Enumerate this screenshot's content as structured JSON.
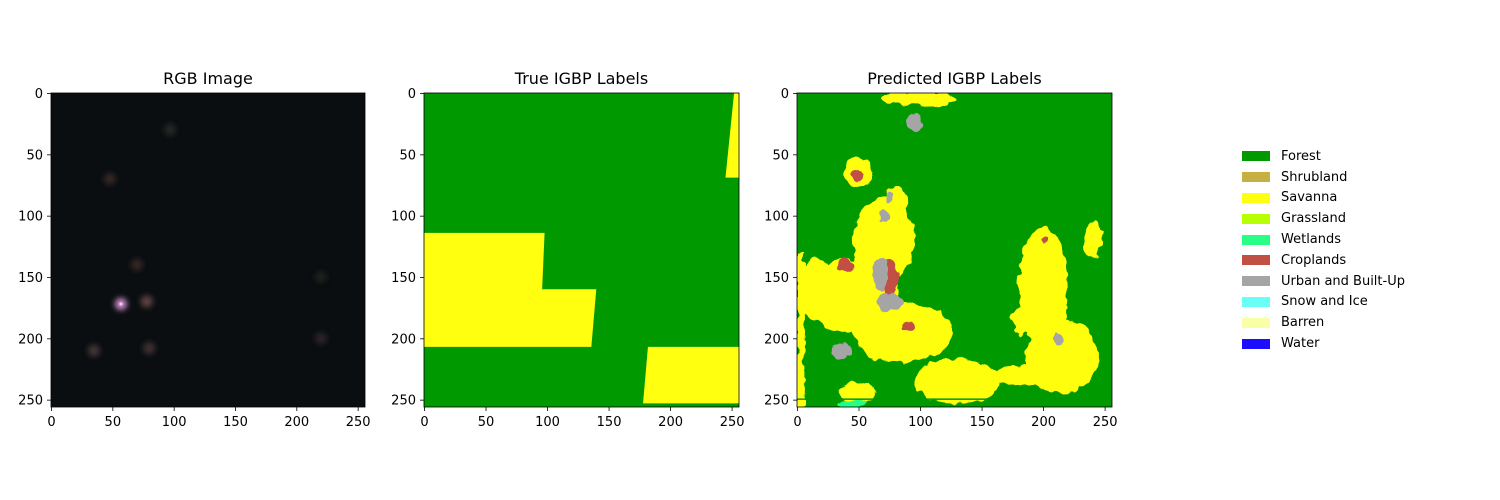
{
  "colors": {
    "forest": "#009900",
    "savanna": "#ffff0f",
    "shrubland": "#c6b044",
    "grassland": "#b6ff05",
    "wetlands": "#27ff87",
    "croplands": "#c24f44",
    "urban": "#a5a5a5",
    "snow": "#69fff8",
    "barren": "#f9ffa4",
    "water": "#1c0dff",
    "rgb_background": "#0a0e11"
  },
  "chart_data": [
    {
      "type": "heatmap",
      "title": "RGB Image",
      "xlim": [
        0,
        256
      ],
      "ylim": [
        256,
        0
      ],
      "xticks": [
        0,
        50,
        100,
        150,
        200,
        250
      ],
      "yticks": [
        0,
        50,
        100,
        150,
        200,
        250
      ],
      "description_values": "dark satellite RGB image with faint brownish bright patches",
      "bright_spots": [
        {
          "x": 57,
          "y": 172,
          "color": "#e8a0e0"
        },
        {
          "x": 78,
          "y": 170,
          "color": "#6a4a48"
        },
        {
          "x": 35,
          "y": 210,
          "color": "#4a3a3a"
        },
        {
          "x": 80,
          "y": 208,
          "color": "#4a3636"
        },
        {
          "x": 70,
          "y": 140,
          "color": "#3a2a28"
        },
        {
          "x": 48,
          "y": 70,
          "color": "#3a2b27"
        },
        {
          "x": 97,
          "y": 30,
          "color": "#2b2a28"
        },
        {
          "x": 220,
          "y": 150,
          "color": "#22201e"
        },
        {
          "x": 220,
          "y": 200,
          "color": "#33282a"
        }
      ]
    },
    {
      "type": "heatmap",
      "title": "True IGBP Labels",
      "xlim": [
        0,
        256
      ],
      "ylim": [
        256,
        0
      ],
      "xticks": [
        0,
        50,
        100,
        150,
        200,
        250
      ],
      "yticks": [
        0,
        50,
        100,
        150,
        200,
        250
      ],
      "regions": [
        {
          "class": "Forest",
          "points": [
            [
              0,
              0
            ],
            [
              256,
              0
            ],
            [
              256,
              256
            ],
            [
              0,
              256
            ]
          ]
        },
        {
          "class": "Savanna",
          "points": [
            [
              0,
              114
            ],
            [
              98,
              114
            ],
            [
              96,
              160
            ],
            [
              140,
              160
            ],
            [
              136,
              207
            ],
            [
              0,
              207
            ]
          ]
        },
        {
          "class": "Savanna",
          "points": [
            [
              182,
              207
            ],
            [
              256,
              207
            ],
            [
              256,
              253
            ],
            [
              178,
              253
            ]
          ]
        },
        {
          "class": "Savanna",
          "points": [
            [
              252,
              0
            ],
            [
              256,
              0
            ],
            [
              256,
              69
            ],
            [
              245,
              69
            ]
          ]
        }
      ]
    },
    {
      "type": "heatmap",
      "title": "Predicted IGBP Labels",
      "xlim": [
        0,
        256
      ],
      "ylim": [
        256,
        0
      ],
      "xticks": [
        0,
        50,
        100,
        150,
        200,
        250
      ],
      "yticks": [
        0,
        50,
        100,
        150,
        200,
        250
      ],
      "blobs": [
        {
          "class": "Savanna",
          "x": 45,
          "y": 165,
          "rx": 38,
          "ry": 30
        },
        {
          "class": "Savanna",
          "x": 85,
          "y": 195,
          "rx": 40,
          "ry": 25
        },
        {
          "class": "Savanna",
          "x": 70,
          "y": 120,
          "rx": 25,
          "ry": 35
        },
        {
          "class": "Savanna",
          "x": 15,
          "y": 160,
          "rx": 15,
          "ry": 25
        },
        {
          "class": "Savanna",
          "x": 130,
          "y": 235,
          "rx": 35,
          "ry": 18
        },
        {
          "class": "Savanna",
          "x": 200,
          "y": 160,
          "rx": 20,
          "ry": 50
        },
        {
          "class": "Savanna",
          "x": 215,
          "y": 215,
          "rx": 30,
          "ry": 30
        },
        {
          "class": "Savanna",
          "x": 50,
          "y": 245,
          "rx": 15,
          "ry": 8
        },
        {
          "class": "Savanna",
          "x": 185,
          "y": 185,
          "rx": 10,
          "ry": 12
        },
        {
          "class": "Savanna",
          "x": 100,
          "y": 5,
          "rx": 30,
          "ry": 6
        },
        {
          "class": "Savanna",
          "x": 50,
          "y": 65,
          "rx": 12,
          "ry": 12
        },
        {
          "class": "Savanna",
          "x": 80,
          "y": 90,
          "rx": 10,
          "ry": 15
        },
        {
          "class": "Savanna",
          "x": 180,
          "y": 230,
          "rx": 20,
          "ry": 8
        },
        {
          "class": "Savanna",
          "x": 240,
          "y": 120,
          "rx": 8,
          "ry": 15
        },
        {
          "class": "Croplands",
          "x": 75,
          "y": 150,
          "rx": 8,
          "ry": 14
        },
        {
          "class": "Croplands",
          "x": 40,
          "y": 140,
          "rx": 6,
          "ry": 5
        },
        {
          "class": "Croplands",
          "x": 50,
          "y": 67,
          "rx": 5,
          "ry": 5
        },
        {
          "class": "Croplands",
          "x": 90,
          "y": 190,
          "rx": 5,
          "ry": 4
        },
        {
          "class": "Croplands",
          "x": 200,
          "y": 120,
          "rx": 3,
          "ry": 3
        },
        {
          "class": "Urban and Built-Up",
          "x": 95,
          "y": 24,
          "rx": 6,
          "ry": 7
        },
        {
          "class": "Urban and Built-Up",
          "x": 68,
          "y": 148,
          "rx": 6,
          "ry": 14
        },
        {
          "class": "Urban and Built-Up",
          "x": 75,
          "y": 170,
          "rx": 10,
          "ry": 8
        },
        {
          "class": "Urban and Built-Up",
          "x": 36,
          "y": 210,
          "rx": 9,
          "ry": 6
        },
        {
          "class": "Urban and Built-Up",
          "x": 212,
          "y": 200,
          "rx": 4,
          "ry": 5
        },
        {
          "class": "Urban and Built-Up",
          "x": 70,
          "y": 100,
          "rx": 4,
          "ry": 6
        },
        {
          "class": "Urban and Built-Up",
          "x": 75,
          "y": 85,
          "rx": 4,
          "ry": 5
        },
        {
          "class": "Wetlands",
          "x": 45,
          "y": 253,
          "rx": 12,
          "ry": 3
        }
      ],
      "edges": [
        {
          "class": "Savanna",
          "side": "left",
          "from": 130,
          "to": 256
        },
        {
          "class": "Forest",
          "side": "bottom-strip",
          "y": 249
        }
      ]
    }
  ],
  "legend": [
    {
      "label": "Forest",
      "color": "#009900"
    },
    {
      "label": "Shrubland",
      "color": "#c6b044"
    },
    {
      "label": "Savanna",
      "color": "#ffff0f"
    },
    {
      "label": "Grassland",
      "color": "#b6ff05"
    },
    {
      "label": "Wetlands",
      "color": "#27ff87"
    },
    {
      "label": "Croplands",
      "color": "#c24f44"
    },
    {
      "label": "Urban and Built-Up",
      "color": "#a5a5a5"
    },
    {
      "label": "Snow and Ice",
      "color": "#69fff8"
    },
    {
      "label": "Barren",
      "color": "#f9ffa4"
    },
    {
      "label": "Water",
      "color": "#1c0dff"
    }
  ]
}
